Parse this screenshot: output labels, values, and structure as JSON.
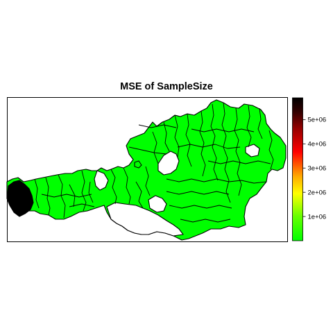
{
  "map": {
    "title": "MSE of SampleSize",
    "fill_color_default": "#00ff00",
    "fill_color_max": "#000000",
    "border_color": "#000000"
  },
  "legend": {
    "ticks": [
      "1e+06",
      "2e+06",
      "3e+06",
      "4e+06",
      "5e+06"
    ],
    "tick_values": [
      1000000,
      2000000,
      3000000,
      4000000,
      5000000
    ],
    "min": 0,
    "max": 5900000,
    "color_stops": [
      "#00ff00",
      "#66ff00",
      "#ffff00",
      "#ffaa00",
      "#ff0000",
      "#aa0000",
      "#330000",
      "#000000"
    ]
  }
}
